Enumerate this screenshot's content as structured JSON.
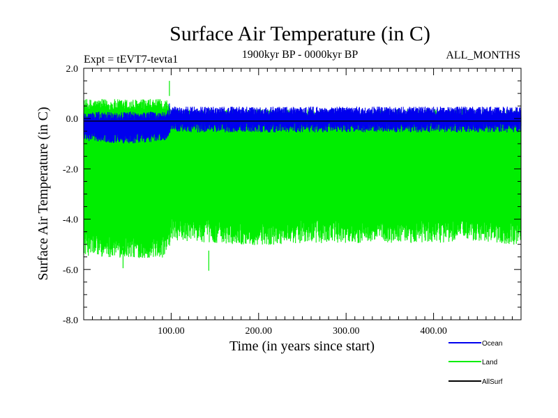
{
  "chart_data": {
    "type": "line",
    "title": "Surface Air Temperature (in C)",
    "subtitle": "1900kyr BP - 0000kyr BP",
    "experiment_label": "Expt = tEVT7-tevta1",
    "months_label": "ALL_MONTHS",
    "xlabel": "Time (in years since start)",
    "ylabel": "Surface Air Temperature (in C)",
    "xlim": [
      0,
      500
    ],
    "ylim": [
      -8.0,
      2.0
    ],
    "x_ticks": [
      {
        "value": 100,
        "label": "100.00"
      },
      {
        "value": 200,
        "label": "200.00"
      },
      {
        "value": 300,
        "label": "300.00"
      },
      {
        "value": 400,
        "label": "400.00"
      }
    ],
    "y_ticks": [
      {
        "value": 2.0,
        "label": "2.0"
      },
      {
        "value": 0.0,
        "label": "0.0"
      },
      {
        "value": -2.0,
        "label": "-2.0"
      },
      {
        "value": -4.0,
        "label": "-4.0"
      },
      {
        "value": -6.0,
        "label": "-6.0"
      },
      {
        "value": -8.0,
        "label": "-8.0"
      }
    ],
    "series": [
      {
        "name": "Land",
        "color": "#00ee00",
        "envelope": {
          "x": [
            0,
            50,
            95,
            100,
            150,
            200,
            250,
            300,
            350,
            400,
            450,
            500
          ],
          "upper_mean": [
            0.5,
            0.5,
            0.5,
            0.1,
            0.1,
            0.1,
            0.1,
            0.1,
            0.1,
            0.1,
            0.1,
            0.1
          ],
          "lower_mean": [
            -5.0,
            -5.1,
            -5.1,
            -4.4,
            -4.5,
            -4.6,
            -4.5,
            -4.5,
            -4.5,
            -4.5,
            -4.4,
            -4.6
          ],
          "max_peak": 1.5,
          "min_trough": -6.05
        }
      },
      {
        "name": "Ocean",
        "color": "#0000ee",
        "envelope": {
          "x": [
            0,
            50,
            95,
            100,
            150,
            200,
            250,
            300,
            350,
            400,
            450,
            500
          ],
          "upper_mean": [
            0.1,
            0.1,
            0.1,
            0.3,
            0.3,
            0.3,
            0.3,
            0.3,
            0.3,
            0.3,
            0.3,
            0.3
          ],
          "lower_mean": [
            -0.7,
            -0.8,
            -0.7,
            -0.35,
            -0.35,
            -0.35,
            -0.35,
            -0.35,
            -0.35,
            -0.35,
            -0.35,
            -0.35
          ],
          "max_peak": 0.6,
          "min_trough": -1.1
        }
      },
      {
        "name": "AllSurf",
        "color": "#000000",
        "mean_value": -0.1
      }
    ],
    "legend": {
      "placement": "bottom-right",
      "order": [
        "Ocean",
        "Land",
        "AllSurf"
      ]
    }
  }
}
